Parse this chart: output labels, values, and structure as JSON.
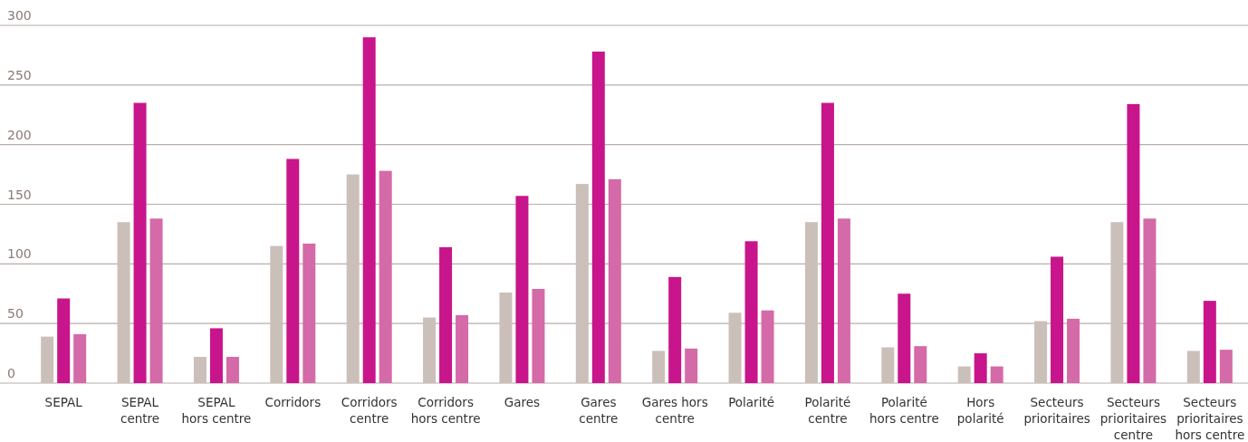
{
  "chart_data": {
    "type": "bar",
    "categories": [
      "SEPAL",
      "SEPAL\ncentre",
      "SEPAL\nhors centre",
      "Corridors",
      "Corridors\ncentre",
      "Corridors\nhors centre",
      "Gares",
      "Gares\ncentre",
      "Gares hors\ncentre",
      "Polarité",
      "Polarité\ncentre",
      "Polarité\nhors centre",
      "Hors\npolarité",
      "Secteurs\nprioritaires",
      "Secteurs\nprioritaires\ncentre",
      "Secteurs\nprioritaires\nhors centre"
    ],
    "series": [
      {
        "color": "#cbbfba",
        "values": [
          39,
          135,
          22,
          115,
          175,
          55,
          76,
          167,
          27,
          59,
          135,
          30,
          14,
          52,
          135,
          27
        ]
      },
      {
        "color": "#c8158b",
        "values": [
          71,
          235,
          46,
          188,
          290,
          114,
          157,
          278,
          89,
          119,
          235,
          75,
          25,
          106,
          234,
          69
        ]
      },
      {
        "color": "#d46aa8",
        "values": [
          41,
          138,
          22,
          117,
          178,
          57,
          79,
          171,
          29,
          61,
          138,
          31,
          14,
          54,
          138,
          28
        ]
      }
    ],
    "ylim": [
      0,
      300
    ],
    "yticks": [
      0,
      50,
      100,
      150,
      200,
      250,
      300
    ],
    "grid": "y"
  }
}
